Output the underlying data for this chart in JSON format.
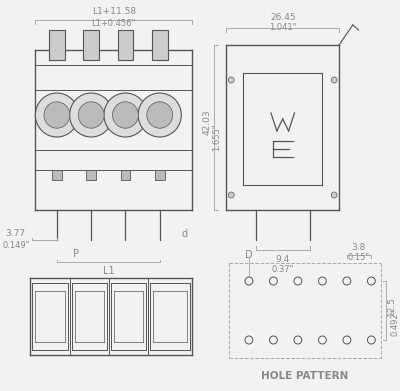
{
  "bg_color": "#f0f0f0",
  "line_color": "#888888",
  "dark_color": "#555555",
  "text_color": "#888888",
  "dim_color": "#aaaaaa",
  "component_color": "#999999",
  "dim_labels": {
    "top_width": "L1+11.58",
    "top_width_in": "L1+0.456\"",
    "side_width": "26.45",
    "side_width_in": "1.041\"",
    "side_height": "42.03",
    "side_height_in": "1.655\"",
    "pitch_label": "P",
    "d_label": "d",
    "left_dim": "3.77",
    "left_dim_in": "0.149\"",
    "l1_label": "L1",
    "side_bottom_w": "9.4",
    "side_bottom_w_in": "0.37\"",
    "hole_d": "D",
    "hole_w": "3.8",
    "hole_w_in": "0.15\"",
    "hole_h": "12.5",
    "hole_h_in": "0.492\""
  }
}
